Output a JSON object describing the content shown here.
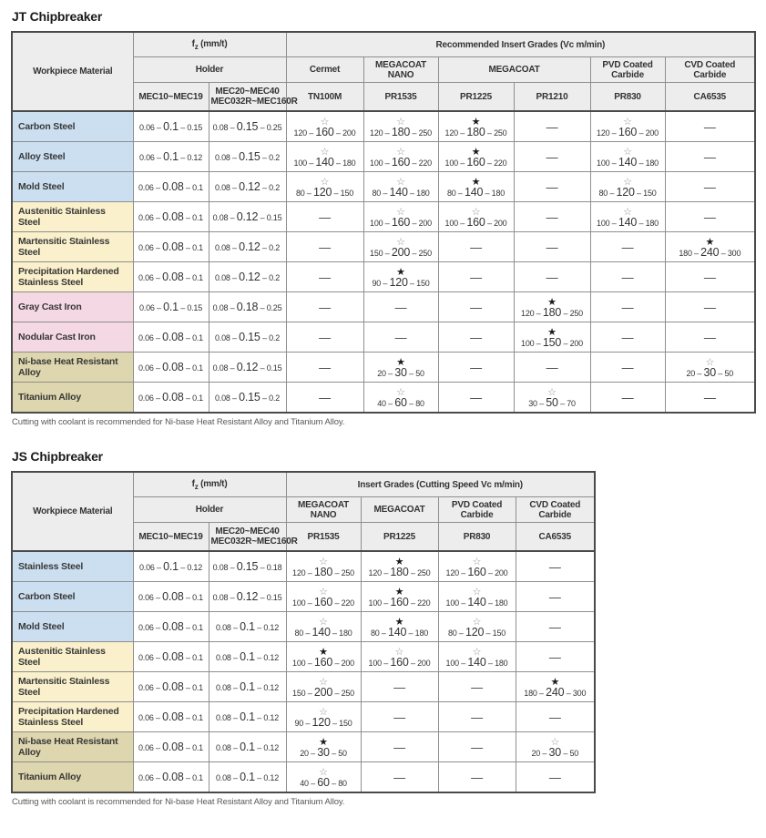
{
  "colors": {
    "blue": "#cbdff1",
    "yellow": "#faf0cb",
    "pink": "#f4d8e3",
    "tan": "#ded6ae"
  },
  "icons": {
    "open_star": "☆",
    "filled_star": "★",
    "dash": "—",
    "range_separator": "–"
  },
  "tables": [
    {
      "id": "jt",
      "title": "JT Chipbreaker",
      "note": "Cutting with coolant is recommended for Ni-base Heat Resistant Alloy and Titanium Alloy.",
      "header": {
        "workpiece": "Workpiece Material",
        "fz_f": "f",
        "fz_sub": "z",
        "fz_unit": " (mm/t)",
        "grades_title": "Recommended Insert Grades (Vc m/min)",
        "holder": "Holder",
        "holder_cols": [
          "MEC10~MEC19",
          "MEC20~MEC40\nMEC032R~MEC160R"
        ],
        "grade_groups": [
          {
            "label": "Cermet",
            "span": 1
          },
          {
            "label": "MEGACOAT\nNANO",
            "span": 1
          },
          {
            "label": "MEGACOAT",
            "span": 2
          },
          {
            "label": "PVD Coated Carbide",
            "span": 1
          },
          {
            "label": "CVD Coated Carbide",
            "span": 1
          }
        ],
        "grade_cols": [
          "TN100M",
          "PR1535",
          "PR1225",
          "PR1210",
          "PR830",
          "CA6535"
        ]
      },
      "rows": [
        {
          "material": "Carbon Steel",
          "color": "blue",
          "fz": [
            [
              "0.06",
              "0.1",
              "0.15"
            ],
            [
              "0.08",
              "0.15",
              "0.25"
            ]
          ],
          "grades": [
            {
              "star": "open",
              "v": [
                "120",
                "160",
                "200"
              ]
            },
            {
              "star": "open",
              "v": [
                "120",
                "180",
                "250"
              ]
            },
            {
              "star": "filled",
              "v": [
                "120",
                "180",
                "250"
              ]
            },
            null,
            {
              "star": "open",
              "v": [
                "120",
                "160",
                "200"
              ]
            },
            null
          ]
        },
        {
          "material": "Alloy Steel",
          "color": "blue",
          "fz": [
            [
              "0.06",
              "0.1",
              "0.12"
            ],
            [
              "0.08",
              "0.15",
              "0.2"
            ]
          ],
          "grades": [
            {
              "star": "open",
              "v": [
                "100",
                "140",
                "180"
              ]
            },
            {
              "star": "open",
              "v": [
                "100",
                "160",
                "220"
              ]
            },
            {
              "star": "filled",
              "v": [
                "100",
                "160",
                "220"
              ]
            },
            null,
            {
              "star": "open",
              "v": [
                "100",
                "140",
                "180"
              ]
            },
            null
          ]
        },
        {
          "material": "Mold Steel",
          "color": "blue",
          "fz": [
            [
              "0.06",
              "0.08",
              "0.1"
            ],
            [
              "0.08",
              "0.12",
              "0.2"
            ]
          ],
          "grades": [
            {
              "star": "open",
              "v": [
                "80",
                "120",
                "150"
              ]
            },
            {
              "star": "open",
              "v": [
                "80",
                "140",
                "180"
              ]
            },
            {
              "star": "filled",
              "v": [
                "80",
                "140",
                "180"
              ]
            },
            null,
            {
              "star": "open",
              "v": [
                "80",
                "120",
                "150"
              ]
            },
            null
          ]
        },
        {
          "material": "Austenitic Stainless Steel",
          "color": "yellow",
          "fz": [
            [
              "0.06",
              "0.08",
              "0.1"
            ],
            [
              "0.08",
              "0.12",
              "0.15"
            ]
          ],
          "grades": [
            null,
            {
              "star": "open",
              "v": [
                "100",
                "160",
                "200"
              ]
            },
            {
              "star": "open",
              "v": [
                "100",
                "160",
                "200"
              ]
            },
            null,
            {
              "star": "open",
              "v": [
                "100",
                "140",
                "180"
              ]
            },
            null
          ]
        },
        {
          "material": "Martensitic Stainless Steel",
          "color": "yellow",
          "fz": [
            [
              "0.06",
              "0.08",
              "0.1"
            ],
            [
              "0.08",
              "0.12",
              "0.2"
            ]
          ],
          "grades": [
            null,
            {
              "star": "open",
              "v": [
                "150",
                "200",
                "250"
              ]
            },
            null,
            null,
            null,
            {
              "star": "filled",
              "v": [
                "180",
                "240",
                "300"
              ]
            }
          ]
        },
        {
          "material": "Precipitation Hardened Stainless Steel",
          "color": "yellow",
          "fz": [
            [
              "0.06",
              "0.08",
              "0.1"
            ],
            [
              "0.08",
              "0.12",
              "0.2"
            ]
          ],
          "grades": [
            null,
            {
              "star": "filled",
              "v": [
                "90",
                "120",
                "150"
              ]
            },
            null,
            null,
            null,
            null
          ]
        },
        {
          "material": "Gray Cast Iron",
          "color": "pink",
          "fz": [
            [
              "0.06",
              "0.1",
              "0.15"
            ],
            [
              "0.08",
              "0.18",
              "0.25"
            ]
          ],
          "grades": [
            null,
            null,
            null,
            {
              "star": "filled",
              "v": [
                "120",
                "180",
                "250"
              ]
            },
            null,
            null
          ]
        },
        {
          "material": "Nodular Cast Iron",
          "color": "pink",
          "fz": [
            [
              "0.06",
              "0.08",
              "0.1"
            ],
            [
              "0.08",
              "0.15",
              "0.2"
            ]
          ],
          "grades": [
            null,
            null,
            null,
            {
              "star": "filled",
              "v": [
                "100",
                "150",
                "200"
              ]
            },
            null,
            null
          ]
        },
        {
          "material": "Ni-base Heat Resistant Alloy",
          "color": "tan",
          "fz": [
            [
              "0.06",
              "0.08",
              "0.1"
            ],
            [
              "0.08",
              "0.12",
              "0.15"
            ]
          ],
          "grades": [
            null,
            {
              "star": "filled",
              "v": [
                "20",
                "30",
                "50"
              ]
            },
            null,
            null,
            null,
            {
              "star": "open",
              "v": [
                "20",
                "30",
                "50"
              ]
            }
          ]
        },
        {
          "material": "Titanium Alloy",
          "color": "tan",
          "fz": [
            [
              "0.06",
              "0.08",
              "0.1"
            ],
            [
              "0.08",
              "0.15",
              "0.2"
            ]
          ],
          "grades": [
            null,
            {
              "star": "open",
              "v": [
                "40",
                "60",
                "80"
              ]
            },
            null,
            {
              "star": "open",
              "v": [
                "30",
                "50",
                "70"
              ]
            },
            null,
            null
          ]
        }
      ]
    },
    {
      "id": "js",
      "title": "JS Chipbreaker",
      "note": "Cutting with coolant is recommended for Ni-base Heat Resistant Alloy and Titanium Alloy.",
      "header": {
        "workpiece": "Workpiece Material",
        "fz_f": "f",
        "fz_sub": "z",
        "fz_unit": " (mm/t)",
        "grades_title": "Insert Grades (Cutting Speed  Vc m/min)",
        "holder": "Holder",
        "holder_cols": [
          "MEC10~MEC19",
          "MEC20~MEC40\nMEC032R~MEC160R"
        ],
        "grade_groups": [
          {
            "label": "MEGACOAT\nNANO",
            "span": 1
          },
          {
            "label": "MEGACOAT",
            "span": 1
          },
          {
            "label": "PVD Coated Carbide",
            "span": 1
          },
          {
            "label": "CVD Coated Carbide",
            "span": 1
          }
        ],
        "grade_cols": [
          "PR1535",
          "PR1225",
          "PR830",
          "CA6535"
        ]
      },
      "rows": [
        {
          "material": "Stainless Steel",
          "color": "blue",
          "fz": [
            [
              "0.06",
              "0.1",
              "0.12"
            ],
            [
              "0.08",
              "0.15",
              "0.18"
            ]
          ],
          "grades": [
            {
              "star": "open",
              "v": [
                "120",
                "180",
                "250"
              ]
            },
            {
              "star": "filled",
              "v": [
                "120",
                "180",
                "250"
              ]
            },
            {
              "star": "open",
              "v": [
                "120",
                "160",
                "200"
              ]
            },
            null
          ]
        },
        {
          "material": "Carbon Steel",
          "color": "blue",
          "fz": [
            [
              "0.06",
              "0.08",
              "0.1"
            ],
            [
              "0.08",
              "0.12",
              "0.15"
            ]
          ],
          "grades": [
            {
              "star": "open",
              "v": [
                "100",
                "160",
                "220"
              ]
            },
            {
              "star": "filled",
              "v": [
                "100",
                "160",
                "220"
              ]
            },
            {
              "star": "open",
              "v": [
                "100",
                "140",
                "180"
              ]
            },
            null
          ]
        },
        {
          "material": "Mold Steel",
          "color": "blue",
          "fz": [
            [
              "0.06",
              "0.08",
              "0.1"
            ],
            [
              "0.08",
              "0.1",
              "0.12"
            ]
          ],
          "grades": [
            {
              "star": "open",
              "v": [
                "80",
                "140",
                "180"
              ]
            },
            {
              "star": "filled",
              "v": [
                "80",
                "140",
                "180"
              ]
            },
            {
              "star": "open",
              "v": [
                "80",
                "120",
                "150"
              ]
            },
            null
          ]
        },
        {
          "material": "Austenitic Stainless Steel",
          "color": "yellow",
          "fz": [
            [
              "0.06",
              "0.08",
              "0.1"
            ],
            [
              "0.08",
              "0.1",
              "0.12"
            ]
          ],
          "grades": [
            {
              "star": "filled",
              "v": [
                "100",
                "160",
                "200"
              ]
            },
            {
              "star": "open",
              "v": [
                "100",
                "160",
                "200"
              ]
            },
            {
              "star": "open",
              "v": [
                "100",
                "140",
                "180"
              ]
            },
            null
          ]
        },
        {
          "material": "Martensitic Stainless Steel",
          "color": "yellow",
          "fz": [
            [
              "0.06",
              "0.08",
              "0.1"
            ],
            [
              "0.08",
              "0.1",
              "0.12"
            ]
          ],
          "grades": [
            {
              "star": "open",
              "v": [
                "150",
                "200",
                "250"
              ]
            },
            null,
            null,
            {
              "star": "filled",
              "v": [
                "180",
                "240",
                "300"
              ]
            }
          ]
        },
        {
          "material": "Precipitation Hardened Stainless Steel",
          "color": "yellow",
          "fz": [
            [
              "0.06",
              "0.08",
              "0.1"
            ],
            [
              "0.08",
              "0.1",
              "0.12"
            ]
          ],
          "grades": [
            {
              "star": "open",
              "v": [
                "90",
                "120",
                "150"
              ]
            },
            null,
            null,
            null
          ]
        },
        {
          "material": "Ni-base Heat Resistant Alloy",
          "color": "tan",
          "fz": [
            [
              "0.06",
              "0.08",
              "0.1"
            ],
            [
              "0.08",
              "0.1",
              "0.12"
            ]
          ],
          "grades": [
            {
              "star": "filled",
              "v": [
                "20",
                "30",
                "50"
              ]
            },
            null,
            null,
            {
              "star": "open",
              "v": [
                "20",
                "30",
                "50"
              ]
            }
          ]
        },
        {
          "material": "Titanium Alloy",
          "color": "tan",
          "fz": [
            [
              "0.06",
              "0.08",
              "0.1"
            ],
            [
              "0.08",
              "0.1",
              "0.12"
            ]
          ],
          "grades": [
            {
              "star": "open",
              "v": [
                "40",
                "60",
                "80"
              ]
            },
            null,
            null,
            null
          ]
        }
      ]
    }
  ]
}
